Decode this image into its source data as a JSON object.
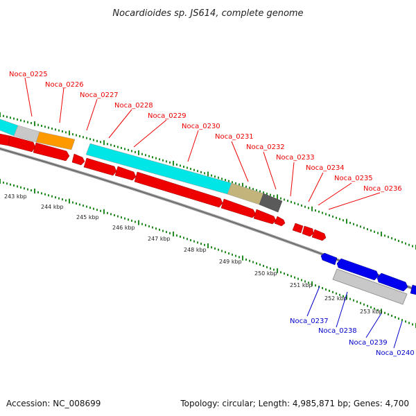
{
  "title": "Nocardioides sp. JS614, complete genome",
  "footer": {
    "accession": "Accession: NC_008699",
    "summary": "Topology: circular; Length: 4,985,871 bp; Genes: 4,700"
  },
  "colors": {
    "forward_gene": "#0000ee",
    "reverse_gene": "#ee0000",
    "ruler_ticks": "#228b22",
    "backbone": "#777777"
  },
  "kbp_labels": [
    "243 kbp",
    "244 kbp",
    "245 kbp",
    "246 kbp",
    "247 kbp",
    "248 kbp",
    "249 kbp",
    "250 kbp",
    "251 kbp",
    "252 kbp",
    "253 kbp"
  ],
  "reverse_genes": [
    "Noca_0225",
    "Noca_0226",
    "Noca_0227",
    "Noca_0228",
    "Noca_0229",
    "Noca_0230",
    "Noca_0231",
    "Noca_0232",
    "Noca_0233",
    "Noca_0234",
    "Noca_0235",
    "Noca_0236"
  ],
  "forward_genes": [
    "Noca_0237",
    "Noca_0238",
    "Noca_0239",
    "Noca_0240"
  ],
  "category_colors": [
    "#00e5e5",
    "#c8c8c8",
    "#ff9900",
    "#c2b47a",
    "#5a5a5a",
    "#c8c8c8"
  ]
}
